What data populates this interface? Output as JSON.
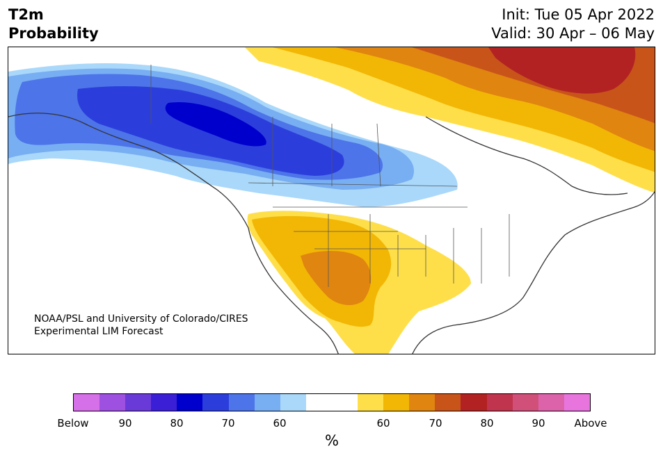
{
  "title": {
    "line1": "T2m",
    "line2": "Probability"
  },
  "init_label": "Init: Tue 05 Apr 2022",
  "valid_label": "Valid: 30 Apr – 06 May",
  "credit": {
    "line1": "NOAA/PSL and University of Colorado/CIRES",
    "line2": "Experimental LIM Forecast"
  },
  "colorbar": {
    "unit": "%",
    "colors": [
      "#d670e8",
      "#9e50e0",
      "#6a3ad8",
      "#3a1fd6",
      "#0000cc",
      "#2b3edc",
      "#4d74e8",
      "#78aef2",
      "#aad8fa",
      "#ffffff",
      "#ffffff",
      "#fedf4a",
      "#f2b705",
      "#e08510",
      "#c8541a",
      "#b22222",
      "#c0344e",
      "#d0507a",
      "#dc63aa",
      "#e875de"
    ],
    "ticks": [
      "Below",
      "90",
      "80",
      "70",
      "60",
      "60",
      "70",
      "80",
      "90",
      "Above"
    ]
  },
  "map": {
    "layers": [
      {
        "name": "cold-60",
        "color": "#aad8fa"
      },
      {
        "name": "cold-65",
        "color": "#78aef2"
      },
      {
        "name": "cold-70",
        "color": "#4d74e8"
      },
      {
        "name": "cold-75",
        "color": "#2b3edc"
      },
      {
        "name": "cold-80",
        "color": "#0000cc"
      },
      {
        "name": "warm-60",
        "color": "#fedf4a"
      },
      {
        "name": "warm-65",
        "color": "#f2b705"
      },
      {
        "name": "warm-70",
        "color": "#e08510"
      },
      {
        "name": "warm-75",
        "color": "#c8541a"
      },
      {
        "name": "warm-80",
        "color": "#b22222"
      }
    ]
  }
}
